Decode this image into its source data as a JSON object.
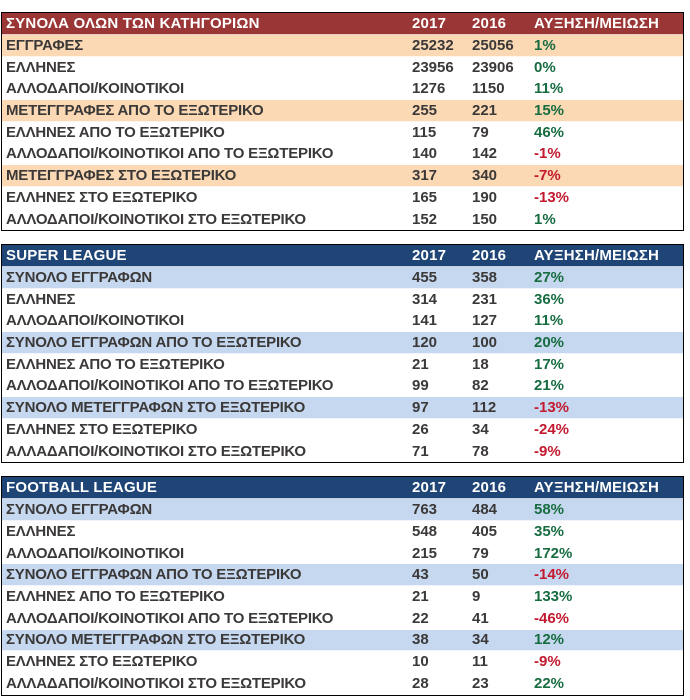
{
  "colors": {
    "red_header_bg": "#9A3635",
    "red_band_bg": "#FBD9B4",
    "blue_header_bg": "#1F4576",
    "blue_band_bg": "#C5D8EF",
    "header_text": "#FFFFFF",
    "body_text": "#3B3838",
    "positive_green": "#176C40",
    "negative_red": "#C31A2F",
    "table_border": "#000000",
    "page_bg": "#FFFFFF"
  },
  "chart_data": [
    {
      "type": "table",
      "title": "ΣΥΝΟΛΑ ΟΛΩΝ ΤΩΝ ΚΑΤΗΓΟΡΙΩΝ",
      "theme": "red",
      "columns": [
        "2017",
        "2016",
        "ΑΥΞΗΣΗ/ΜΕΙΩΣΗ"
      ],
      "rows": [
        {
          "label": "ΕΓΓΡΑΦΕΣ",
          "v2017": 25232,
          "v2016": 25056,
          "change": "1%",
          "trend": "up",
          "band": true
        },
        {
          "label": "ΕΛΛΗΝΕΣ",
          "v2017": 23956,
          "v2016": 23906,
          "change": "0%",
          "trend": "up",
          "band": false
        },
        {
          "label": "ΑΛΛΟΔΑΠΟΙ/ΚΟΙΝΟΤΙΚΟΙ",
          "v2017": 1276,
          "v2016": 1150,
          "change": "11%",
          "trend": "up",
          "band": false
        },
        {
          "label": "ΜΕΤΕΓΓΡΑΦΕΣ ΑΠΟ ΤΟ ΕΞΩΤΕΡΙΚΟ",
          "v2017": 255,
          "v2016": 221,
          "change": "15%",
          "trend": "up",
          "band": true
        },
        {
          "label": "ΕΛΛΗΝΕΣ ΑΠΟ ΤΟ ΕΞΩΤΕΡΙΚΟ",
          "v2017": 115,
          "v2016": 79,
          "change": "46%",
          "trend": "up",
          "band": false
        },
        {
          "label": "ΑΛΛΟΔΑΠΟΙ/ΚΟΙΝΟΤΙΚΟΙ ΑΠΟ ΤΟ ΕΞΩΤΕΡΙΚΟ",
          "v2017": 140,
          "v2016": 142,
          "change": "-1%",
          "trend": "down",
          "band": false
        },
        {
          "label": "ΜΕΤΕΓΓΡΑΦΕΣ ΣΤΟ ΕΞΩΤΕΡΙΚΟ",
          "v2017": 317,
          "v2016": 340,
          "change": "-7%",
          "trend": "down",
          "band": true
        },
        {
          "label": "ΕΛΛΗΝΕΣ ΣΤΟ ΕΞΩΤΕΡΙΚΟ",
          "v2017": 165,
          "v2016": 190,
          "change": "-13%",
          "trend": "down",
          "band": false
        },
        {
          "label": "ΑΛΛΟΔΑΠΟΙ/ΚΟΙΝΟΤΙΚΟΙ ΣΤΟ ΕΞΩΤΕΡΙΚΟ",
          "v2017": 152,
          "v2016": 150,
          "change": "1%",
          "trend": "up",
          "band": false
        }
      ]
    },
    {
      "type": "table",
      "title": "SUPER LEAGUE",
      "theme": "blue",
      "columns": [
        "2017",
        "2016",
        "ΑΥΞΗΣΗ/ΜΕΙΩΣΗ"
      ],
      "rows": [
        {
          "label": "ΣΥΝΟΛΟ ΕΓΓΡΑΦΩΝ",
          "v2017": 455,
          "v2016": 358,
          "change": "27%",
          "trend": "up",
          "band": true
        },
        {
          "label": "ΕΛΛΗΝΕΣ",
          "v2017": 314,
          "v2016": 231,
          "change": "36%",
          "trend": "up",
          "band": false
        },
        {
          "label": "ΑΛΛΟΔΑΠΟΙ/ΚΟΙΝΟΤΙΚΟΙ",
          "v2017": 141,
          "v2016": 127,
          "change": "11%",
          "trend": "up",
          "band": false
        },
        {
          "label": "ΣΥΝΟΛΟ ΕΓΓΡΑΦΩΝ ΑΠΟ ΤΟ ΕΞΩΤΕΡΙΚΟ",
          "v2017": 120,
          "v2016": 100,
          "change": "20%",
          "trend": "up",
          "band": true
        },
        {
          "label": "ΕΛΛΗΝΕΣ ΑΠΟ ΤΟ ΕΞΩΤΕΡΙΚΟ",
          "v2017": 21,
          "v2016": 18,
          "change": "17%",
          "trend": "up",
          "band": false
        },
        {
          "label": "ΑΛΛΟΔΑΠΟΙ/ΚΟΙΝΟΤΙΚΟΙ ΑΠΟ ΤΟ ΕΞΩΤΕΡΙΚΟ",
          "v2017": 99,
          "v2016": 82,
          "change": "21%",
          "trend": "up",
          "band": false
        },
        {
          "label": "ΣΥΝΟΛΟ ΜΕΤΕΓΓΡΑΦΩΝ ΣΤΟ ΕΞΩΤΕΡΙΚΟ",
          "v2017": 97,
          "v2016": 112,
          "change": "-13%",
          "trend": "down",
          "band": true
        },
        {
          "label": "ΕΛΛΗΝΕΣ ΣΤΟ ΕΞΩΤΕΡΙΚΟ",
          "v2017": 26,
          "v2016": 34,
          "change": "-24%",
          "trend": "down",
          "band": false
        },
        {
          "label": "ΑΛΛΑΔΑΠΟΙ/ΚΟΙΝΟΤΙΚΟΙ ΣΤΟ ΕΞΩΤΕΡΙΚΟ",
          "v2017": 71,
          "v2016": 78,
          "change": "-9%",
          "trend": "down",
          "band": false
        }
      ]
    },
    {
      "type": "table",
      "title": "FOOTBALL LEAGUE",
      "theme": "blue",
      "columns": [
        "2017",
        "2016",
        "ΑΥΞΗΣΗ/ΜΕΙΩΣΗ"
      ],
      "rows": [
        {
          "label": "ΣΥΝΟΛΟ ΕΓΓΡΑΦΩΝ",
          "v2017": 763,
          "v2016": 484,
          "change": "58%",
          "trend": "up",
          "band": true
        },
        {
          "label": "ΕΛΛΗΝΕΣ",
          "v2017": 548,
          "v2016": 405,
          "change": "35%",
          "trend": "up",
          "band": false
        },
        {
          "label": "ΑΛΛΟΔΑΠΟΙ/ΚΟΙΝΟΤΙΚΟΙ",
          "v2017": 215,
          "v2016": 79,
          "change": "172%",
          "trend": "up",
          "band": false
        },
        {
          "label": "ΣΥΝΟΛΟ ΕΓΓΡΑΦΩΝ ΑΠΟ ΤΟ ΕΞΩΤΕΡΙΚΟ",
          "v2017": 43,
          "v2016": 50,
          "change": "-14%",
          "trend": "down",
          "band": true
        },
        {
          "label": "ΕΛΛΗΝΕΣ ΑΠΟ ΤΟ ΕΞΩΤΕΡΙΚΟ",
          "v2017": 21,
          "v2016": 9,
          "change": "133%",
          "trend": "up",
          "band": false
        },
        {
          "label": "ΑΛΛΟΔΑΠΟΙ/ΚΟΙΝΟΤΙΚΟΙ ΑΠΟ ΤΟ ΕΞΩΤΕΡΙΚΟ",
          "v2017": 22,
          "v2016": 41,
          "change": "-46%",
          "trend": "down",
          "band": false
        },
        {
          "label": "ΣΥΝΟΛΟ ΜΕΤΕΓΓΡΑΦΩΝ ΣΤΟ ΕΞΩΤΕΡΙΚΟ",
          "v2017": 38,
          "v2016": 34,
          "change": "12%",
          "trend": "up",
          "band": true
        },
        {
          "label": "ΕΛΛΗΝΕΣ ΣΤΟ ΕΞΩΤΕΡΙΚΟ",
          "v2017": 10,
          "v2016": 11,
          "change": "-9%",
          "trend": "down",
          "band": false
        },
        {
          "label": "ΑΛΛΑΔΑΠΟΙ/ΚΟΙΝΟΤΙΚΟΙ ΣΤΟ ΕΞΩΤΕΡΙΚΟ",
          "v2017": 28,
          "v2016": 23,
          "change": "22%",
          "trend": "up",
          "band": false
        }
      ]
    }
  ]
}
